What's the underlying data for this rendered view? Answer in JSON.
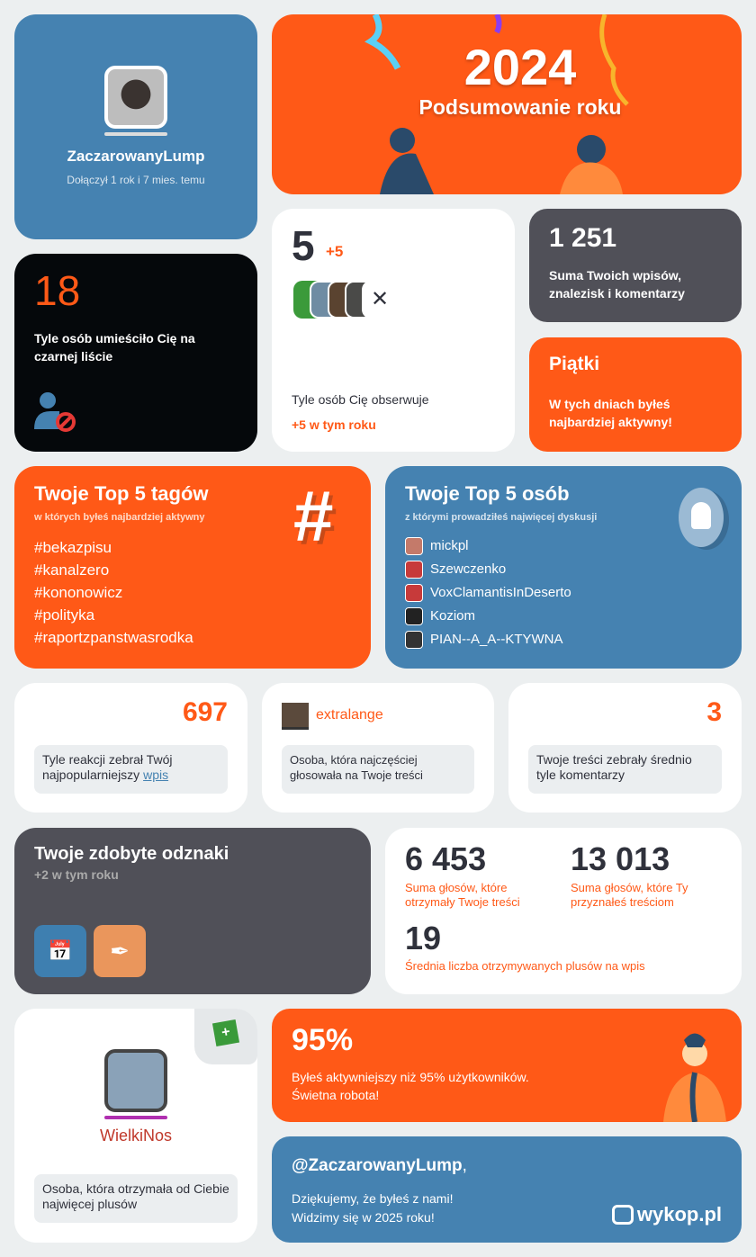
{
  "profile": {
    "username": "ZaczarowanyLump",
    "joined": "Dołączył 1 rok i 7 mies. temu"
  },
  "banner": {
    "year": "2024",
    "subtitle": "Podsumowanie roku"
  },
  "blacklist": {
    "count": "18",
    "label": "Tyle osób umieściło Cię na czarnej liście"
  },
  "followers": {
    "count": "5",
    "delta": "+5",
    "label": "Tyle osób Cię obserwuje",
    "year_delta": "+5 w tym roku"
  },
  "posts": {
    "count": "1 251",
    "label": "Suma Twoich wpisów, znalezisk i komentarzy"
  },
  "day": {
    "title": "Piątki",
    "label": "W tych dniach byłeś najbardziej aktywny!"
  },
  "tags": {
    "title": "Twoje Top 5 tagów",
    "subtitle": "w których byłeś najbardziej aktywny",
    "items": [
      "#bekazpisu",
      "#kanalzero",
      "#kononowicz",
      "#polityka",
      "#raportzpanstwasrodka"
    ]
  },
  "people": {
    "title": "Twoje Top 5 osób",
    "subtitle": "z którymi prowadziłeś najwięcej dyskusji",
    "items": [
      "mickpl",
      "Szewczenko",
      "VoxClamantisInDeserto",
      "Koziom",
      "PIAN--A_A--KTYWNA"
    ]
  },
  "reactions": {
    "count": "697",
    "label": "Tyle reakcji zebrał Twój najpopularniejszy",
    "link": "wpis"
  },
  "voter": {
    "name": "extralange",
    "label": "Osoba, która najczęściej głosowała na Twoje treści"
  },
  "comments": {
    "count": "3",
    "label": "Twoje treści zebrały średnio tyle komentarzy"
  },
  "badges": {
    "title": "Twoje zdobyte odznaki",
    "subtitle": "+2 w tym roku"
  },
  "votes": {
    "received": "6 453",
    "received_label": "Suma głosów, które otrzymały Twoje treści",
    "given": "13 013",
    "given_label": "Suma głosów, które Ty przyznałeś treściom",
    "avg": "19",
    "avg_label": "Średnia liczba otrzymywanych plusów na wpis"
  },
  "plus_user": {
    "name": "WielkiNos",
    "label": "Osoba, która otrzymała od Ciebie najwięcej plusów"
  },
  "percent": {
    "value": "95%",
    "label1": "Byłeś aktywniejszy niż 95% użytkowników.",
    "label2": "Świetna robota!"
  },
  "thanks": {
    "handle": "@ZaczarowanyLump",
    "comma": ",",
    "line1": "Dziękujemy, że byłeś z nami!",
    "line2": "Widzimy się w 2025 roku!",
    "logo": "wykop.pl"
  },
  "colors": {
    "orange": "#ff5917",
    "blue": "#4582b1",
    "dark": "#505058",
    "black": "#05080b"
  }
}
